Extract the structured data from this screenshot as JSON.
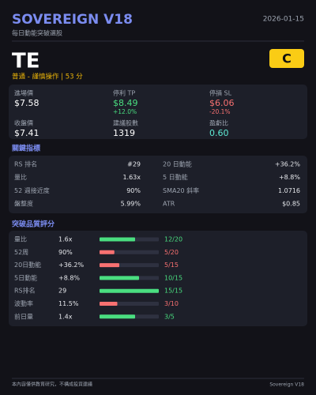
{
  "header": {
    "title": "SOVEREIGN V18",
    "subtitle": "每日動能突破選股",
    "date": "2026-01-15"
  },
  "stock": {
    "ticker": "TE",
    "grade": "C",
    "status": "普通 - 謹慎操作 | 53 分"
  },
  "prices": [
    {
      "label": "進場價",
      "value": "$7.58",
      "color": "#ffffff"
    },
    {
      "label": "停利 TP",
      "value": "$8.49",
      "note": "+12.0%",
      "color": "#4ade80"
    },
    {
      "label": "停損 SL",
      "value": "$6.06",
      "note": "-20.1%",
      "color": "#f87171"
    },
    {
      "label": "收盤價",
      "value": "$7.41",
      "color": "#ffffff"
    },
    {
      "label": "建議股數",
      "value": "1319",
      "color": "#ffffff"
    },
    {
      "label": "盈虧比",
      "value": "0.60",
      "color": "#5eead4"
    }
  ],
  "indicators": {
    "title": "關鍵指標",
    "rows": [
      [
        "RS 排名",
        "#29",
        "20 日動能",
        "+36.2%"
      ],
      [
        "量比",
        "1.63x",
        "5 日動能",
        "+8.8%"
      ],
      [
        "52 週接近度",
        "90%",
        "SMA20 斜率",
        "1.0716"
      ],
      [
        "盤整度",
        "5.99%",
        "ATR",
        "$0.85"
      ]
    ]
  },
  "scores": {
    "title": "突破品質評分",
    "rows": [
      {
        "name": "量比",
        "value": "1.6x",
        "score": 12,
        "max": 20,
        "score_label": "12/20",
        "color": "#4ade80"
      },
      {
        "name": "52周",
        "value": "90%",
        "score": 5,
        "max": 20,
        "score_label": "5/20",
        "color": "#f87171"
      },
      {
        "name": "20日動能",
        "value": "+36.2%",
        "score": 5,
        "max": 15,
        "score_label": "5/15",
        "color": "#f87171"
      },
      {
        "name": "5日動能",
        "value": "+8.8%",
        "score": 10,
        "max": 15,
        "score_label": "10/15",
        "color": "#4ade80"
      },
      {
        "name": "RS排名",
        "value": "29",
        "score": 15,
        "max": 15,
        "score_label": "15/15",
        "color": "#4ade80"
      },
      {
        "name": "波動率",
        "value": "11.5%",
        "score": 3,
        "max": 10,
        "score_label": "3/10",
        "color": "#f87171"
      },
      {
        "name": "前日量",
        "value": "1.4x",
        "score": 3,
        "max": 5,
        "score_label": "3/5",
        "color": "#4ade80"
      }
    ]
  },
  "footer": {
    "disclaimer": "本內容僅供教育研究，不構成投資建議",
    "brand": "Sovereign V18"
  }
}
